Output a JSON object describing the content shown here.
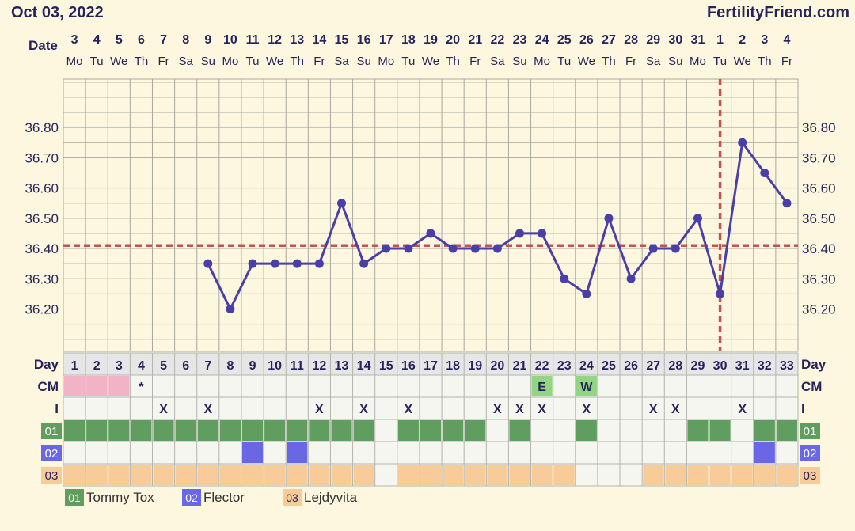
{
  "header": {
    "start_date": "Oct 03, 2022",
    "brand": "FertilityFriend.com"
  },
  "labels": {
    "date": "Date",
    "day": "Day",
    "cm": "CM",
    "intercourse": "I"
  },
  "dates": [
    "3",
    "4",
    "5",
    "6",
    "7",
    "8",
    "9",
    "10",
    "11",
    "12",
    "13",
    "14",
    "15",
    "16",
    "17",
    "18",
    "19",
    "20",
    "21",
    "22",
    "23",
    "24",
    "25",
    "26",
    "27",
    "28",
    "29",
    "30",
    "31",
    "1",
    "2",
    "3",
    "4"
  ],
  "weekdays": [
    "Mo",
    "Tu",
    "We",
    "Th",
    "Fr",
    "Sa",
    "Su",
    "Mo",
    "Tu",
    "We",
    "Th",
    "Fr",
    "Sa",
    "Su",
    "Mo",
    "Tu",
    "We",
    "Th",
    "Fr",
    "Sa",
    "Su",
    "Mo",
    "Tu",
    "We",
    "Th",
    "Fr",
    "Sa",
    "Su",
    "Mo",
    "Tu",
    "We",
    "Th",
    "Fr"
  ],
  "days": [
    "1",
    "2",
    "3",
    "4",
    "5",
    "6",
    "7",
    "8",
    "9",
    "10",
    "11",
    "12",
    "13",
    "14",
    "15",
    "16",
    "17",
    "18",
    "19",
    "20",
    "21",
    "22",
    "23",
    "24",
    "25",
    "26",
    "27",
    "28",
    "29",
    "30",
    "31",
    "32",
    "33"
  ],
  "chart_data": {
    "type": "line",
    "series": [
      {
        "x": [
          7,
          8,
          9,
          10,
          11,
          12,
          13,
          14,
          15,
          16,
          17,
          18,
          19,
          20,
          21,
          22,
          23,
          24,
          25,
          26,
          27,
          28,
          29,
          30,
          31,
          32,
          33
        ],
        "values": [
          36.35,
          36.2,
          36.35,
          36.35,
          36.35,
          36.35,
          36.55,
          36.35,
          36.4,
          36.4,
          36.45,
          36.4,
          36.4,
          36.4,
          36.45,
          36.45,
          36.3,
          36.25,
          36.5,
          36.3,
          36.4,
          36.4,
          36.5,
          36.25,
          36.75,
          36.65,
          36.55
        ]
      }
    ],
    "y_ticks": [
      "36.80",
      "36.70",
      "36.60",
      "36.50",
      "36.40",
      "36.30",
      "36.20"
    ],
    "ylim": [
      36.06,
      36.96
    ],
    "coverline": 36.41,
    "ovulation_day": 30,
    "grid": true,
    "colors": {
      "line": "#4a3ea8",
      "coverline": "#c95050"
    }
  },
  "cm_row": [
    {
      "day": 1,
      "text": "",
      "color": "#f2b3c6"
    },
    {
      "day": 2,
      "text": "",
      "color": "#f2b3c6"
    },
    {
      "day": 3,
      "text": "",
      "color": "#f2b3c6"
    },
    {
      "day": 4,
      "text": "*",
      "color": ""
    },
    {
      "day": 22,
      "text": "E",
      "color": "#93d584"
    },
    {
      "day": 24,
      "text": "W",
      "color": "#93d584"
    }
  ],
  "intercourse_days": [
    5,
    7,
    12,
    14,
    16,
    20,
    21,
    22,
    24,
    27,
    28,
    31
  ],
  "intercourse_mark": "X",
  "custom_rows": [
    {
      "code": "01",
      "label": "Tommy Tox",
      "color": "#5f9e5f",
      "days": [
        1,
        2,
        3,
        4,
        5,
        6,
        7,
        8,
        9,
        10,
        11,
        12,
        13,
        14,
        16,
        17,
        18,
        19,
        21,
        24,
        29,
        30,
        32,
        33
      ]
    },
    {
      "code": "02",
      "label": "Flector",
      "color": "#6a67e6",
      "days": [
        9,
        11,
        32
      ]
    },
    {
      "code": "03",
      "label": "Lejdyvita",
      "color": "#f8cc98",
      "days": [
        1,
        2,
        3,
        4,
        5,
        6,
        7,
        8,
        9,
        10,
        11,
        12,
        13,
        14,
        16,
        17,
        18,
        19,
        20,
        21,
        22,
        23,
        27,
        28,
        29,
        30,
        31,
        32,
        33
      ]
    }
  ]
}
